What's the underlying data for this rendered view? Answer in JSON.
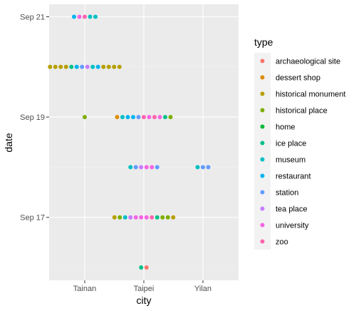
{
  "chart_data": {
    "type": "scatter",
    "subtype": "dodged dot plot",
    "title": "",
    "xlabel": "city",
    "ylabel": "date",
    "x_categories": [
      "Tainan",
      "Taipei",
      "Yilan"
    ],
    "y_ticks": [
      "Sep 17",
      "Sep 19",
      "Sep 21"
    ],
    "y_range": [
      "Sep 16",
      "Sep 21"
    ],
    "grid": true,
    "legend_position": "right",
    "legend": {
      "title": "type",
      "entries": [
        {
          "name": "archaeological site",
          "color": "#F8766D"
        },
        {
          "name": "dessert shop",
          "color": "#DE8C00"
        },
        {
          "name": "historical monument",
          "color": "#B79F00"
        },
        {
          "name": "historical place",
          "color": "#7CAE00"
        },
        {
          "name": "home",
          "color": "#00BA38"
        },
        {
          "name": "ice place",
          "color": "#00C08B"
        },
        {
          "name": "museum",
          "color": "#00BFC4"
        },
        {
          "name": "restaurant",
          "color": "#00B4F0"
        },
        {
          "name": "station",
          "color": "#619CFF"
        },
        {
          "name": "tea place",
          "color": "#C77CFF"
        },
        {
          "name": "university",
          "color": "#F564E3"
        },
        {
          "name": "zoo",
          "color": "#FF64B0"
        }
      ]
    },
    "groups": [
      {
        "city": "Tainan",
        "date": "Sep 21",
        "types": [
          "restaurant",
          "university",
          "zoo",
          "museum",
          "museum"
        ]
      },
      {
        "city": "Tainan",
        "date": "Sep 20",
        "types": [
          "historical monument",
          "historical monument",
          "historical monument",
          "historical monument",
          "ice place",
          "restaurant",
          "station",
          "tea place",
          "museum",
          "restaurant",
          "historical monument",
          "historical monument",
          "historical monument",
          "historical monument"
        ]
      },
      {
        "city": "Tainan",
        "date": "Sep 19",
        "types": [
          "historical place"
        ]
      },
      {
        "city": "Taipei",
        "date": "Sep 19",
        "types": [
          "dessert shop",
          "museum",
          "restaurant",
          "restaurant",
          "station",
          "zoo",
          "university",
          "zoo",
          "university",
          "ice place",
          "historical place"
        ]
      },
      {
        "city": "Taipei",
        "date": "Sep 18",
        "types": [
          "museum",
          "station",
          "tea place",
          "university",
          "university",
          "station"
        ]
      },
      {
        "city": "Yilan",
        "date": "Sep 18",
        "types": [
          "museum",
          "station",
          "station"
        ]
      },
      {
        "city": "Taipei",
        "date": "Sep 17",
        "types": [
          "historical monument",
          "historical place",
          "museum",
          "tea place",
          "university",
          "university",
          "university",
          "zoo",
          "ice place",
          "historical place",
          "historical place",
          "historical monument"
        ]
      },
      {
        "city": "Taipei",
        "date": "Sep 16",
        "types": [
          "ice place",
          "archaeological site"
        ]
      }
    ]
  }
}
